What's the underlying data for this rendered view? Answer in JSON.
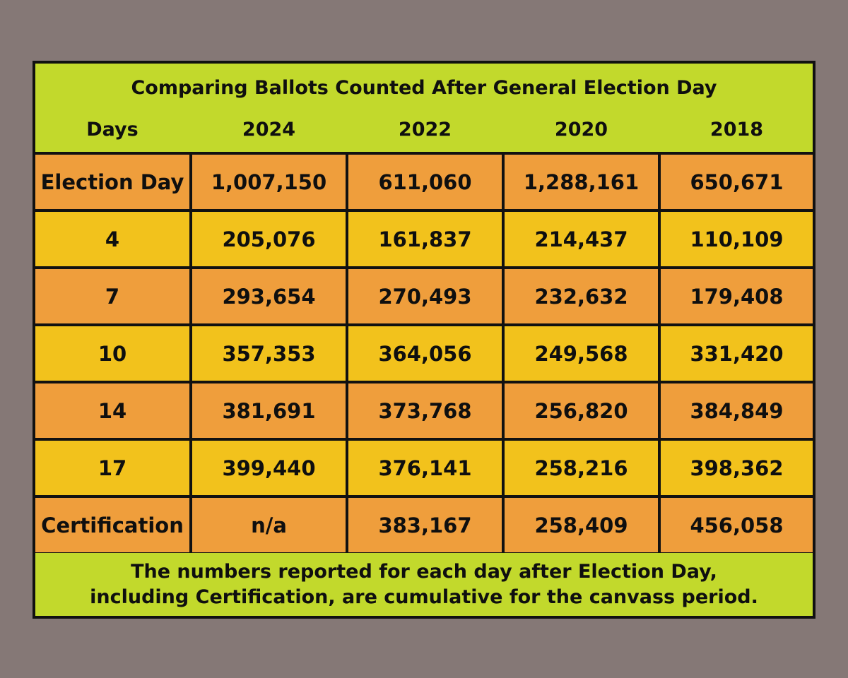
{
  "title": "Comparing Ballots Counted After General Election Day",
  "columns": [
    "Days",
    "2024",
    "2022",
    "2020",
    "2018"
  ],
  "rows": [
    {
      "label": "Election Day",
      "values": [
        "1,007,150",
        "611,060",
        "1,288,161",
        "650,671"
      ]
    },
    {
      "label": "4",
      "values": [
        "205,076",
        "161,837",
        "214,437",
        "110,109"
      ]
    },
    {
      "label": "7",
      "values": [
        "293,654",
        "270,493",
        "232,632",
        "179,408"
      ]
    },
    {
      "label": "10",
      "values": [
        "357,353",
        "364,056",
        "249,568",
        "331,420"
      ]
    },
    {
      "label": "14",
      "values": [
        "381,691",
        "373,768",
        "256,820",
        "384,849"
      ]
    },
    {
      "label": "17",
      "values": [
        "399,440",
        "376,141",
        "258,216",
        "398,362"
      ]
    },
    {
      "label": "Certification",
      "values": [
        "n/a",
        "383,167",
        "258,409",
        "456,058"
      ]
    }
  ],
  "footnote": [
    "The numbers reported for each day after Election Day,",
    "including Certification, are cumulative for the canvass period."
  ],
  "colors": {
    "background": "#857876",
    "header": "#c2d92c",
    "row_orange": "#ef9e3c",
    "row_yellow": "#f2c21c",
    "border": "#111111"
  }
}
